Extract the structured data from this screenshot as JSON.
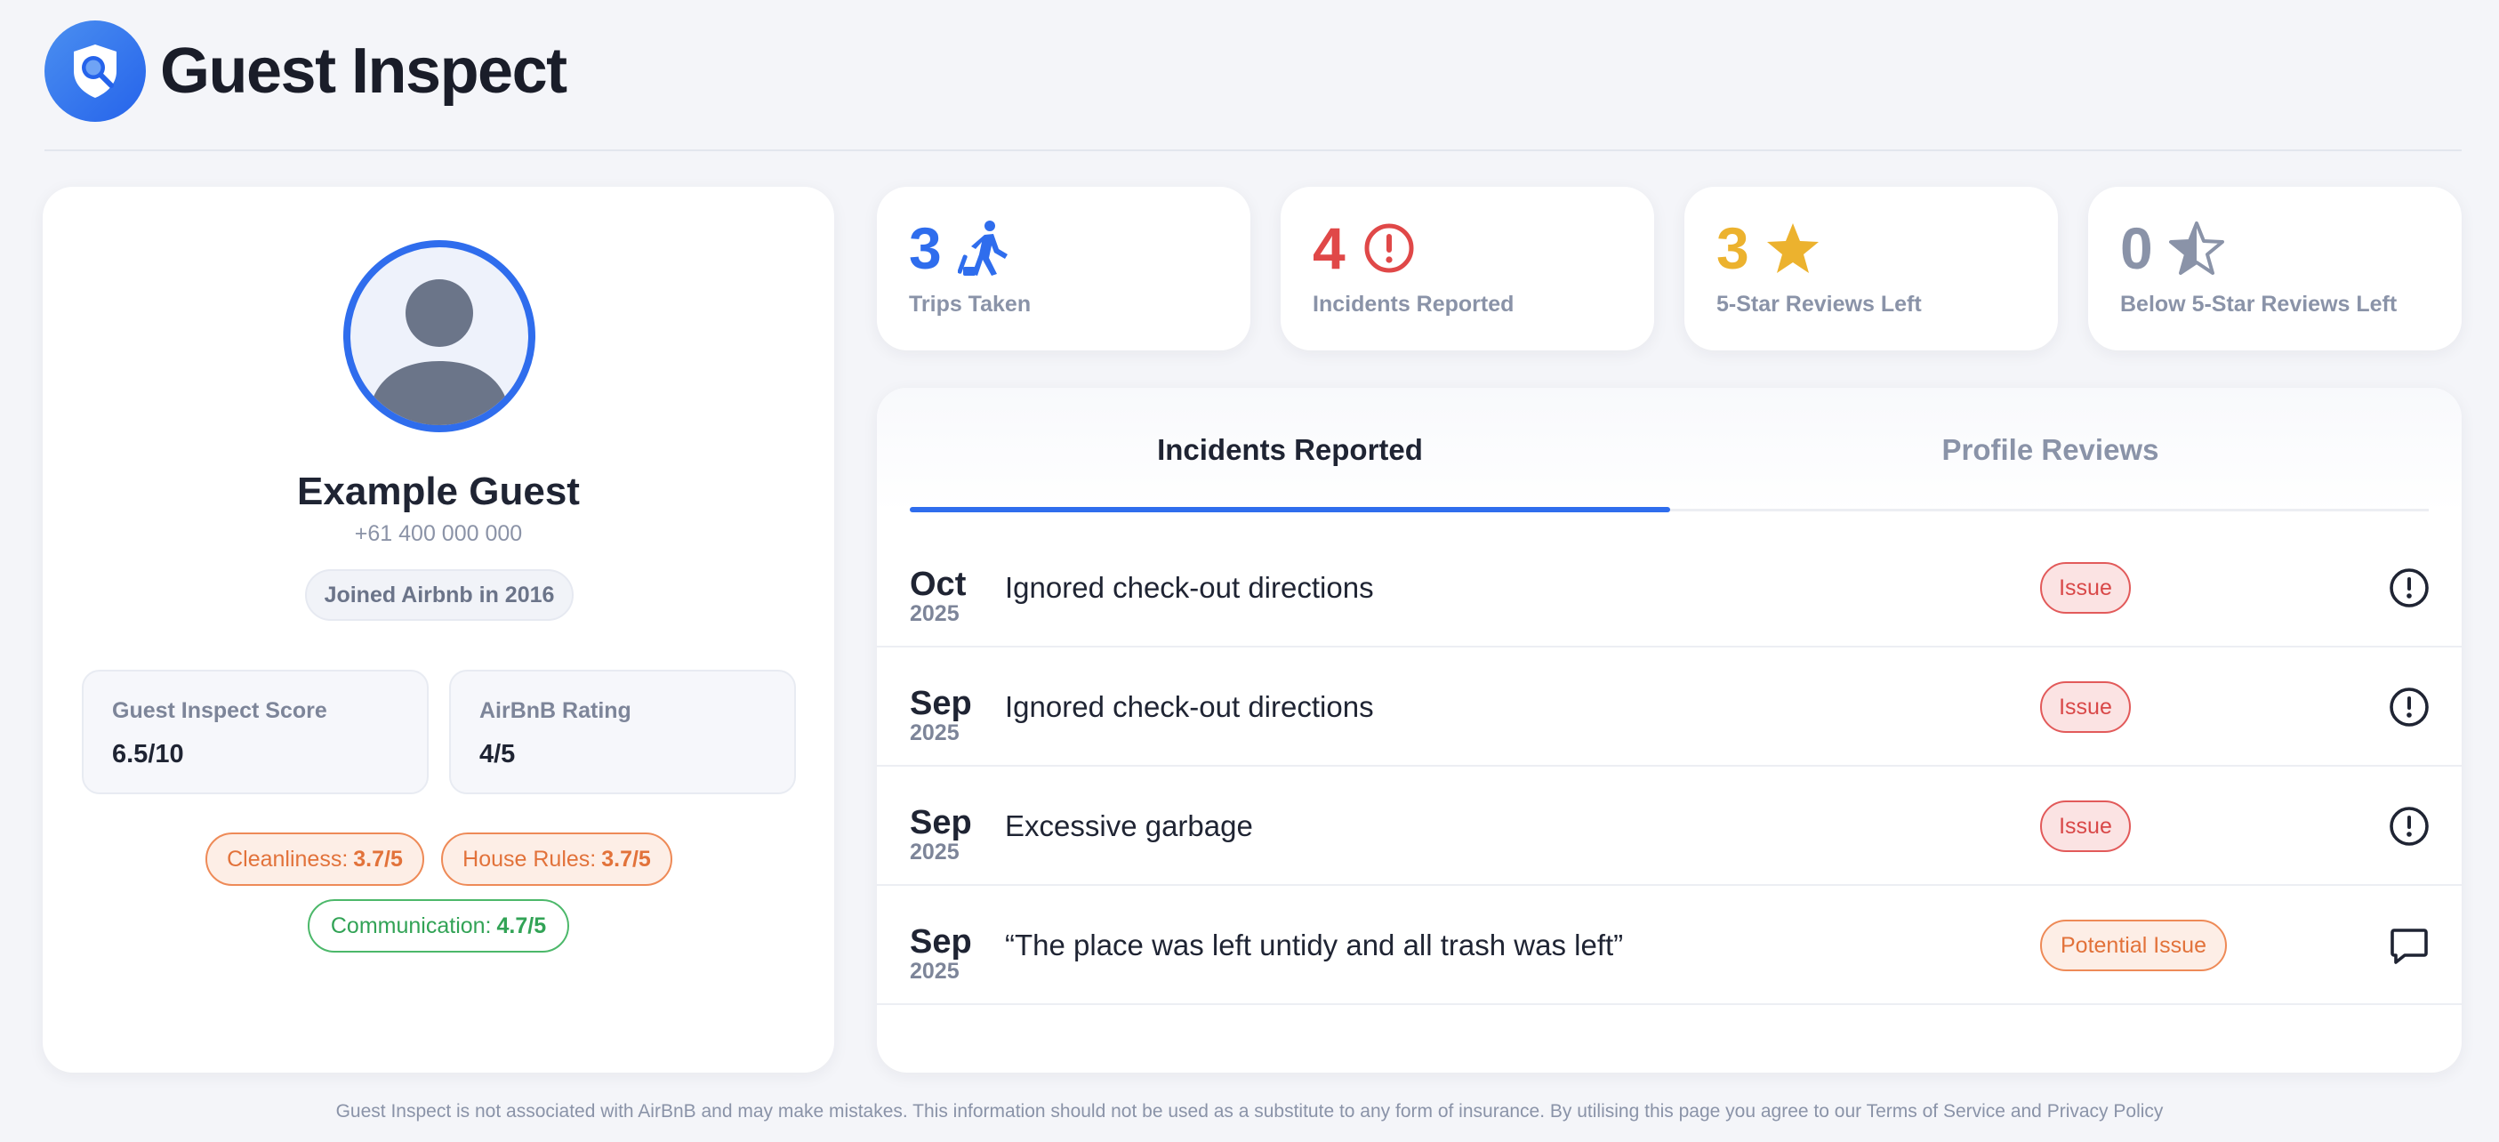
{
  "header": {
    "brand": "Guest Inspect",
    "logo_icon": "shield-search-icon"
  },
  "profile": {
    "name": "Example Guest",
    "phone": "+61 400 000 000",
    "joined": "Joined Airbnb in 2016",
    "scores": {
      "guest_inspect_label": "Guest Inspect Score",
      "guest_inspect_value": "6.5/10",
      "airbnb_label": "AirBnB Rating",
      "airbnb_value": "4/5"
    },
    "ratings": [
      {
        "label": "Cleanliness:",
        "value": "3.7/5",
        "color": "#e2723a"
      },
      {
        "label": "House Rules:",
        "value": "3.7/5",
        "color": "#e2723a"
      },
      {
        "label": "Communication:",
        "value": "4.7/5",
        "color": "#32a356"
      }
    ]
  },
  "stats": [
    {
      "value": "3",
      "label": "Trips Taken",
      "color": "#2f6ded",
      "icon": "walking-traveler-icon"
    },
    {
      "value": "4",
      "label": "Incidents Reported",
      "color": "#e04848",
      "icon": "alert-circle-icon"
    },
    {
      "value": "3",
      "label": "5-Star Reviews Left",
      "color": "#ecb22e",
      "icon": "star-icon"
    },
    {
      "value": "0",
      "label": "Below 5-Star Reviews Left",
      "color": "#8a93a8",
      "icon": "half-star-icon"
    }
  ],
  "tabs": [
    {
      "label": "Incidents Reported",
      "active": true
    },
    {
      "label": "Profile Reviews",
      "active": false
    }
  ],
  "incidents": [
    {
      "month": "Oct",
      "year": "2025",
      "description": "Ignored check-out directions",
      "badge": "Issue",
      "icon": "alert-circle-icon"
    },
    {
      "month": "Sep",
      "year": "2025",
      "description": "Ignored check-out directions",
      "badge": "Issue",
      "icon": "alert-circle-icon"
    },
    {
      "month": "Sep",
      "year": "2025",
      "description": "Excessive garbage",
      "badge": "Issue",
      "icon": "alert-circle-icon"
    },
    {
      "month": "Sep",
      "year": "2025",
      "description": "“The place was left untidy and all trash was left”",
      "badge": "Potential Issue",
      "icon": "chat-bubble-icon"
    }
  ],
  "footer": {
    "text": "Guest Inspect is not associated with AirBnB and may make mistakes. This information should not be used as a substitute to any form of insurance. By utilising this page you agree to our",
    "terms": "Terms of Service",
    "and": "and",
    "privacy": "Privacy Policy"
  }
}
